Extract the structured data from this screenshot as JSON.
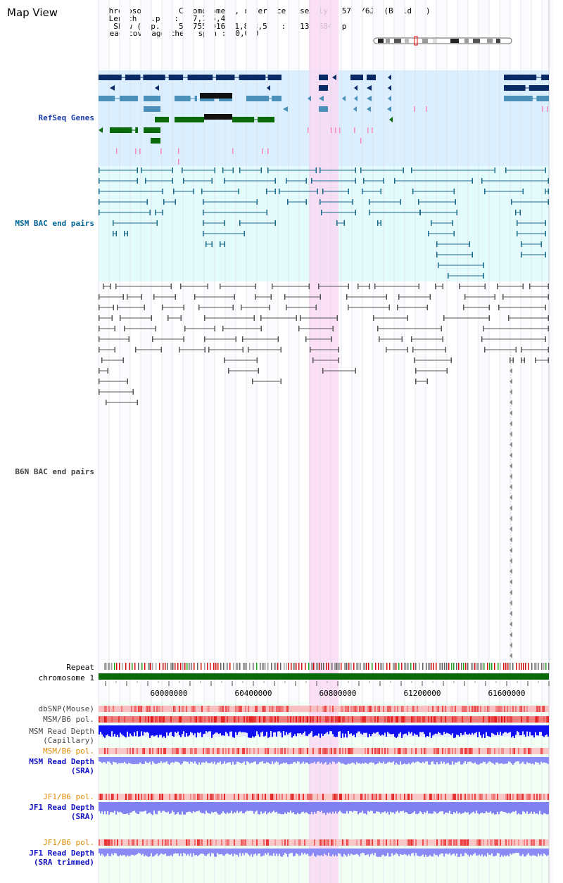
{
  "header": {
    "title": "Map View",
    "chromosome_line": "Chromosome    : Chromosome 1, reference assembly (C57BL/6J) (Build 37)",
    "length_line": " Length (b.p.) : 197,195,432",
    "show_line": "  Show (b.p.) : 59,755,916-61,893,599 : 2,137,684 bp",
    "coverage_line": "Read coverage check span : 10,000"
  },
  "tracks": {
    "refseq": "RefSeq Genes",
    "msm_bac": "MSM BAC end pairs",
    "b6n_bac": "B6N BAC end pairs",
    "repeat": "Repeat",
    "chromosome": "chromosome 1",
    "dbsnp": "dbSNP(Mouse)",
    "msm_b6_pol_1": "MSM/B6 pol.",
    "msm_read_depth_cap": "MSM Read Depth\n(Capillary)",
    "msm_b6_pol_2": "MSM/B6 pol.",
    "msm_read_depth_sra": "MSM Read Depth\n(SRA)",
    "jf1_b6_pol_1": "JF1/B6 pol.",
    "jf1_read_depth_sra": "JF1 Read Depth\n(SRA)",
    "jf1_b6_pol_2": "JF1/B6 pol.",
    "jf1_read_depth_trim": "JF1 Read Depth\n(SRA trimmed)"
  },
  "axis": {
    "ticks": [
      "60000000",
      "60400000",
      "60800000",
      "61200000",
      "61600000"
    ]
  },
  "colors": {
    "refseq_dark": "#0a2a66",
    "refseq_mid": "#4a90b8",
    "refseq_green": "#0a6a0a",
    "msm_label": "#006699",
    "highlight": "#f9d9f3",
    "gene_bg": "#dcefff",
    "msm_bg": "#e3fbfb",
    "track_bg": "#f2fff5"
  }
}
